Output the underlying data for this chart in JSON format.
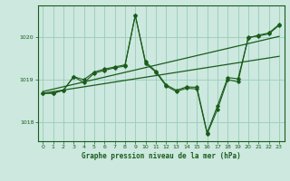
{
  "background_color": "#cce8df",
  "grid_color": "#99ccbb",
  "line_color": "#1a5c1a",
  "title": "Graphe pression niveau de la mer (hPa)",
  "xlim": [
    -0.5,
    23.5
  ],
  "ylim": [
    1017.55,
    1020.75
  ],
  "yticks": [
    1018,
    1019,
    1020
  ],
  "xticks": [
    0,
    1,
    2,
    3,
    4,
    5,
    6,
    7,
    8,
    9,
    10,
    11,
    12,
    13,
    14,
    15,
    16,
    17,
    18,
    19,
    20,
    21,
    22,
    23
  ],
  "trend1_x": [
    0,
    23
  ],
  "trend1_y": [
    1018.68,
    1019.55
  ],
  "trend2_x": [
    0,
    23
  ],
  "trend2_y": [
    1018.72,
    1020.02
  ],
  "jagged1_x": [
    0,
    1,
    2,
    3,
    4,
    5,
    6,
    7,
    8,
    9,
    10,
    11,
    12,
    13,
    14,
    15,
    16,
    17,
    18,
    19,
    20,
    21,
    22,
    23
  ],
  "jagged1_y": [
    1018.68,
    1018.68,
    1018.75,
    1019.07,
    1018.93,
    1019.15,
    1019.22,
    1019.28,
    1019.32,
    1020.52,
    1019.38,
    1019.18,
    1018.85,
    1018.72,
    1018.8,
    1018.78,
    1017.72,
    1018.3,
    1019.0,
    1018.95,
    1020.0,
    1020.03,
    1020.08,
    1020.28
  ],
  "jagged2_x": [
    0,
    1,
    2,
    3,
    4,
    5,
    6,
    7,
    8,
    9,
    10,
    11,
    12,
    13,
    14,
    15,
    16,
    17,
    18,
    19,
    20,
    21,
    22,
    23
  ],
  "jagged2_y": [
    1018.68,
    1018.68,
    1018.75,
    1019.07,
    1018.93,
    1019.15,
    1019.22,
    1019.28,
    1019.32,
    1020.52,
    1019.38,
    1019.18,
    1018.85,
    1018.72,
    1018.8,
    1018.78,
    1017.72,
    1018.3,
    1019.0,
    1018.95,
    1020.0,
    1020.03,
    1020.08,
    1020.28
  ]
}
